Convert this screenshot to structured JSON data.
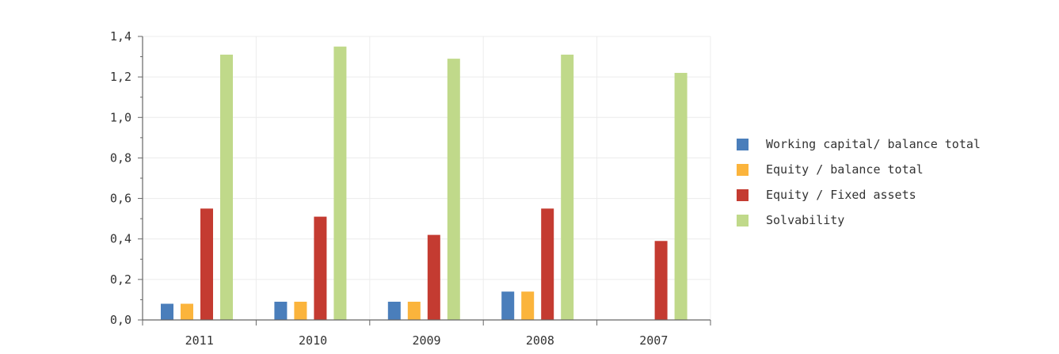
{
  "chart_data": {
    "type": "bar",
    "categories": [
      "2011",
      "2010",
      "2009",
      "2008",
      "2007"
    ],
    "series": [
      {
        "name": "Working capital/ balance total",
        "color": "#4a7ebb",
        "values": [
          0.08,
          0.09,
          0.09,
          0.14,
          null
        ]
      },
      {
        "name": "Equity / balance total",
        "color": "#fbb43c",
        "values": [
          0.08,
          0.09,
          0.09,
          0.14,
          null
        ]
      },
      {
        "name": "Equity / Fixed assets",
        "color": "#c43b31",
        "values": [
          0.55,
          0.51,
          0.42,
          0.55,
          0.39
        ]
      },
      {
        "name": "Solvability",
        "color": "#c0d98a",
        "values": [
          1.31,
          1.35,
          1.29,
          1.31,
          1.22
        ]
      }
    ],
    "yticks": [
      "0,0",
      "0,2",
      "0,4",
      "0,6",
      "0,8",
      "1,0",
      "1,2",
      "1,4"
    ],
    "ylim": [
      0,
      1.4
    ],
    "grid": true,
    "legend_position": "right"
  }
}
